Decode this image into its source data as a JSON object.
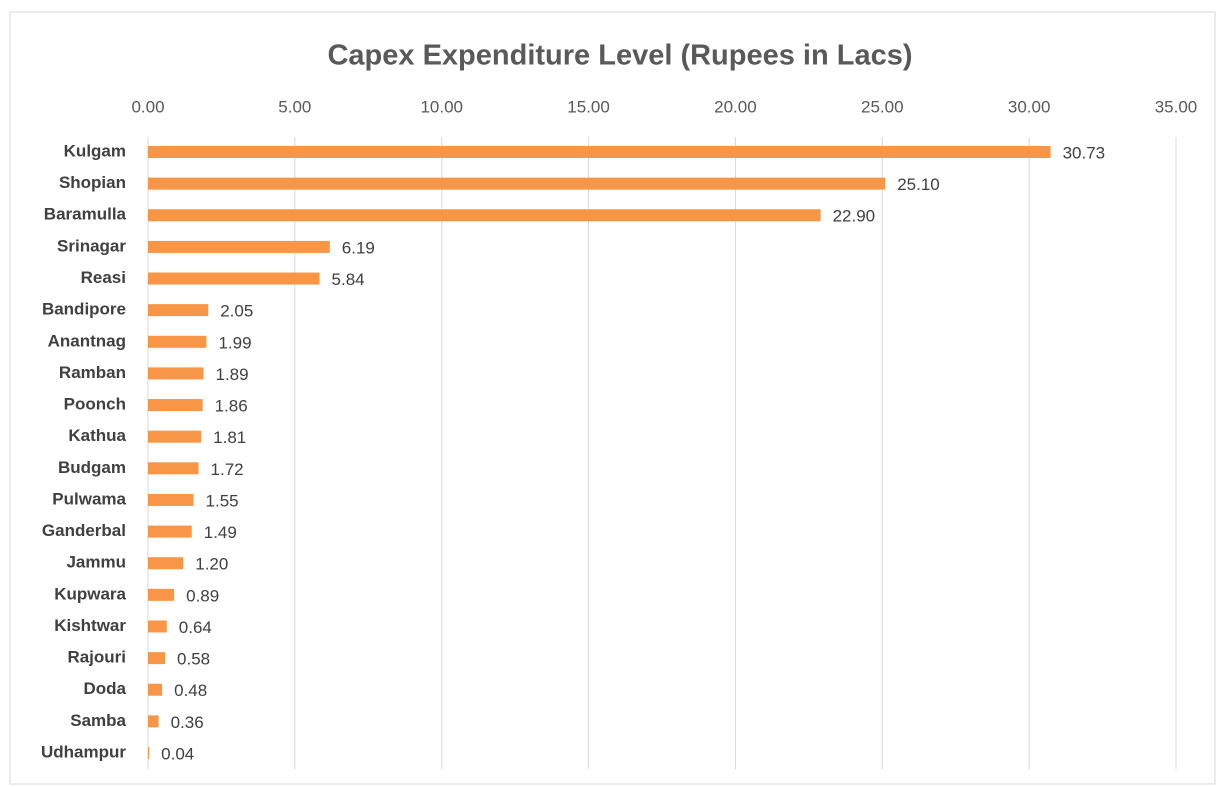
{
  "chart_data": {
    "type": "bar",
    "orientation": "horizontal",
    "title": "Capex Expenditure Level (Rupees in Lacs)",
    "categories": [
      "Kulgam",
      "Shopian",
      "Baramulla",
      "Srinagar",
      "Reasi",
      "Bandipore",
      "Anantnag",
      "Ramban",
      "Poonch",
      "Kathua",
      "Budgam",
      "Pulwama",
      "Ganderbal",
      "Jammu",
      "Kupwara",
      "Kishtwar",
      "Rajouri",
      "Doda",
      "Samba",
      "Udhampur"
    ],
    "values": [
      30.73,
      25.1,
      22.9,
      6.19,
      5.84,
      2.05,
      1.99,
      1.89,
      1.86,
      1.81,
      1.72,
      1.55,
      1.49,
      1.2,
      0.89,
      0.64,
      0.58,
      0.48,
      0.36,
      0.04
    ],
    "value_labels": [
      "30.73",
      "25.10",
      "22.90",
      "6.19",
      "5.84",
      "2.05",
      "1.99",
      "1.89",
      "1.86",
      "1.81",
      "1.72",
      "1.55",
      "1.49",
      "1.20",
      "0.89",
      "0.64",
      "0.58",
      "0.48",
      "0.36",
      "0.04"
    ],
    "color": "#f79646",
    "xlim": [
      0,
      35
    ],
    "xticks": [
      {
        "value": 0,
        "label": "0.00"
      },
      {
        "value": 5,
        "label": "5.00"
      },
      {
        "value": 10,
        "label": "10.00"
      },
      {
        "value": 15,
        "label": "15.00"
      },
      {
        "value": 20,
        "label": "20.00"
      },
      {
        "value": 25,
        "label": "25.00"
      },
      {
        "value": 30,
        "label": "30.00"
      },
      {
        "value": 35,
        "label": "35.00"
      }
    ],
    "grid": true
  }
}
